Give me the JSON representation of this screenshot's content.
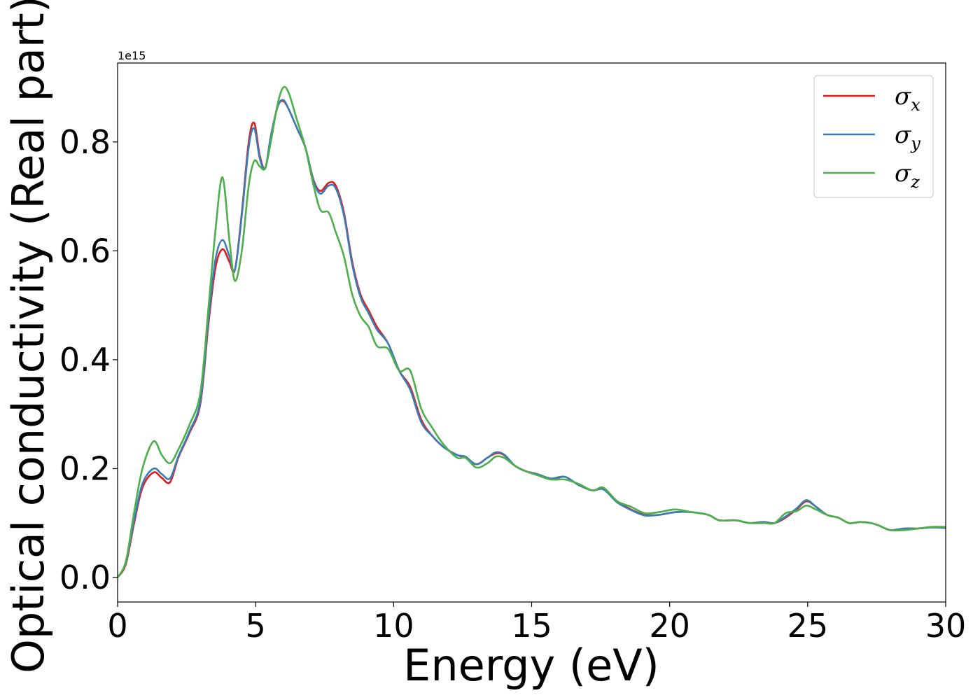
{
  "chart_data": {
    "type": "line",
    "title": "",
    "xlabel": "Energy (eV)",
    "ylabel": "Optical conductivity (Real part)",
    "y_offset_label": "1e15",
    "xlim": [
      0,
      30
    ],
    "ylim": [
      -0.045,
      0.945
    ],
    "xticks": [
      0,
      5,
      10,
      15,
      20,
      25,
      30
    ],
    "yticks": [
      0.0,
      0.2,
      0.4,
      0.6,
      0.8
    ],
    "xtick_labels": [
      "0",
      "5",
      "10",
      "15",
      "20",
      "25",
      "30"
    ],
    "ytick_labels": [
      "0.0",
      "0.2",
      "0.4",
      "0.6",
      "0.8"
    ],
    "grid": false,
    "legend_position": "top-right",
    "series": [
      {
        "name": "σx",
        "name_base": "σ",
        "name_sub": "x",
        "color": "#e41a1c",
        "x": [
          0,
          0.3,
          0.6,
          0.9,
          1.3,
          1.6,
          1.9,
          2.2,
          2.6,
          3.0,
          3.3,
          3.55,
          3.8,
          4.05,
          4.25,
          4.5,
          4.75,
          4.95,
          5.15,
          5.35,
          5.55,
          5.8,
          6.0,
          6.2,
          6.5,
          6.8,
          7.1,
          7.35,
          7.65,
          7.9,
          8.2,
          8.5,
          8.8,
          9.1,
          9.4,
          9.8,
          10.2,
          10.6,
          11.0,
          11.4,
          11.8,
          12.3,
          12.6,
          13.0,
          13.4,
          13.7,
          14.0,
          14.4,
          14.8,
          15.2,
          15.7,
          16.2,
          16.7,
          17.2,
          17.6,
          18.1,
          18.6,
          19.1,
          19.6,
          20.2,
          20.8,
          21.4,
          21.8,
          22.4,
          22.9,
          23.4,
          23.8,
          24.2,
          24.6,
          24.95,
          25.3,
          25.7,
          26.1,
          26.5,
          26.9,
          27.3,
          27.6,
          28.0,
          28.5,
          29.0,
          29.5,
          30.0
        ],
        "y": [
          0.0,
          0.025,
          0.1,
          0.165,
          0.193,
          0.183,
          0.175,
          0.22,
          0.265,
          0.32,
          0.47,
          0.57,
          0.603,
          0.58,
          0.565,
          0.67,
          0.8,
          0.835,
          0.775,
          0.752,
          0.81,
          0.865,
          0.875,
          0.86,
          0.825,
          0.79,
          0.73,
          0.71,
          0.725,
          0.72,
          0.67,
          0.58,
          0.52,
          0.49,
          0.46,
          0.43,
          0.38,
          0.35,
          0.29,
          0.26,
          0.24,
          0.225,
          0.22,
          0.208,
          0.22,
          0.228,
          0.225,
          0.205,
          0.195,
          0.19,
          0.18,
          0.185,
          0.17,
          0.16,
          0.162,
          0.14,
          0.125,
          0.115,
          0.115,
          0.12,
          0.12,
          0.115,
          0.105,
          0.105,
          0.1,
          0.102,
          0.1,
          0.11,
          0.125,
          0.14,
          0.13,
          0.115,
          0.11,
          0.1,
          0.102,
          0.1,
          0.095,
          0.087,
          0.09,
          0.09,
          0.092,
          0.091
        ]
      },
      {
        "name": "σy",
        "name_base": "σ",
        "name_sub": "y",
        "color": "#377eb8",
        "x": [
          0,
          0.3,
          0.6,
          0.9,
          1.3,
          1.6,
          1.9,
          2.2,
          2.6,
          3.0,
          3.3,
          3.55,
          3.8,
          4.05,
          4.25,
          4.5,
          4.75,
          4.95,
          5.15,
          5.35,
          5.55,
          5.8,
          6.0,
          6.2,
          6.5,
          6.8,
          7.1,
          7.35,
          7.65,
          7.9,
          8.2,
          8.5,
          8.8,
          9.1,
          9.4,
          9.8,
          10.2,
          10.6,
          11.0,
          11.4,
          11.8,
          12.3,
          12.6,
          13.0,
          13.4,
          13.7,
          14.0,
          14.4,
          14.8,
          15.2,
          15.7,
          16.2,
          16.7,
          17.2,
          17.6,
          18.1,
          18.6,
          19.1,
          19.6,
          20.2,
          20.8,
          21.4,
          21.8,
          22.4,
          22.9,
          23.4,
          23.8,
          24.2,
          24.6,
          24.95,
          25.3,
          25.7,
          26.1,
          26.5,
          26.9,
          27.3,
          27.6,
          28.0,
          28.5,
          29.0,
          29.5,
          30.0
        ],
        "y": [
          0.0,
          0.028,
          0.105,
          0.172,
          0.2,
          0.19,
          0.182,
          0.222,
          0.268,
          0.325,
          0.48,
          0.585,
          0.62,
          0.59,
          0.565,
          0.665,
          0.79,
          0.825,
          0.77,
          0.752,
          0.81,
          0.865,
          0.877,
          0.86,
          0.825,
          0.79,
          0.728,
          0.705,
          0.72,
          0.715,
          0.665,
          0.575,
          0.515,
          0.485,
          0.455,
          0.43,
          0.38,
          0.345,
          0.285,
          0.26,
          0.24,
          0.225,
          0.222,
          0.208,
          0.22,
          0.23,
          0.226,
          0.205,
          0.195,
          0.19,
          0.182,
          0.185,
          0.17,
          0.16,
          0.162,
          0.138,
          0.124,
          0.114,
          0.115,
          0.12,
          0.12,
          0.115,
          0.105,
          0.105,
          0.1,
          0.102,
          0.1,
          0.112,
          0.127,
          0.142,
          0.13,
          0.115,
          0.11,
          0.1,
          0.102,
          0.1,
          0.095,
          0.087,
          0.09,
          0.09,
          0.092,
          0.091
        ]
      },
      {
        "name": "σz",
        "name_base": "σ",
        "name_sub": "z",
        "color": "#4daf4a",
        "x": [
          0,
          0.3,
          0.6,
          0.9,
          1.3,
          1.6,
          1.9,
          2.2,
          2.6,
          3.0,
          3.3,
          3.55,
          3.8,
          4.05,
          4.25,
          4.5,
          4.75,
          4.95,
          5.15,
          5.35,
          5.55,
          5.8,
          6.0,
          6.2,
          6.5,
          6.8,
          7.1,
          7.35,
          7.65,
          7.9,
          8.2,
          8.5,
          8.8,
          9.1,
          9.4,
          9.8,
          10.2,
          10.6,
          11.0,
          11.4,
          11.8,
          12.3,
          12.6,
          13.0,
          13.4,
          13.7,
          14.0,
          14.4,
          14.8,
          15.2,
          15.7,
          16.2,
          16.7,
          17.2,
          17.6,
          18.1,
          18.6,
          19.1,
          19.6,
          20.2,
          20.8,
          21.4,
          21.8,
          22.4,
          22.9,
          23.4,
          23.8,
          24.2,
          24.6,
          24.95,
          25.3,
          25.7,
          26.1,
          26.5,
          26.9,
          27.3,
          27.6,
          28.0,
          28.5,
          29.0,
          29.5,
          30.0
        ],
        "y": [
          0.0,
          0.03,
          0.12,
          0.2,
          0.25,
          0.225,
          0.21,
          0.235,
          0.28,
          0.34,
          0.5,
          0.64,
          0.735,
          0.62,
          0.545,
          0.6,
          0.72,
          0.765,
          0.755,
          0.752,
          0.8,
          0.87,
          0.9,
          0.89,
          0.84,
          0.79,
          0.72,
          0.675,
          0.67,
          0.635,
          0.59,
          0.52,
          0.48,
          0.46,
          0.425,
          0.42,
          0.38,
          0.38,
          0.31,
          0.275,
          0.245,
          0.22,
          0.22,
          0.202,
          0.21,
          0.222,
          0.22,
          0.205,
          0.195,
          0.188,
          0.18,
          0.18,
          0.172,
          0.16,
          0.165,
          0.14,
          0.13,
          0.118,
          0.12,
          0.125,
          0.12,
          0.115,
          0.105,
          0.105,
          0.1,
          0.1,
          0.1,
          0.118,
          0.122,
          0.132,
          0.125,
          0.115,
          0.11,
          0.1,
          0.102,
          0.1,
          0.095,
          0.087,
          0.087,
          0.09,
          0.093,
          0.093
        ]
      }
    ]
  }
}
